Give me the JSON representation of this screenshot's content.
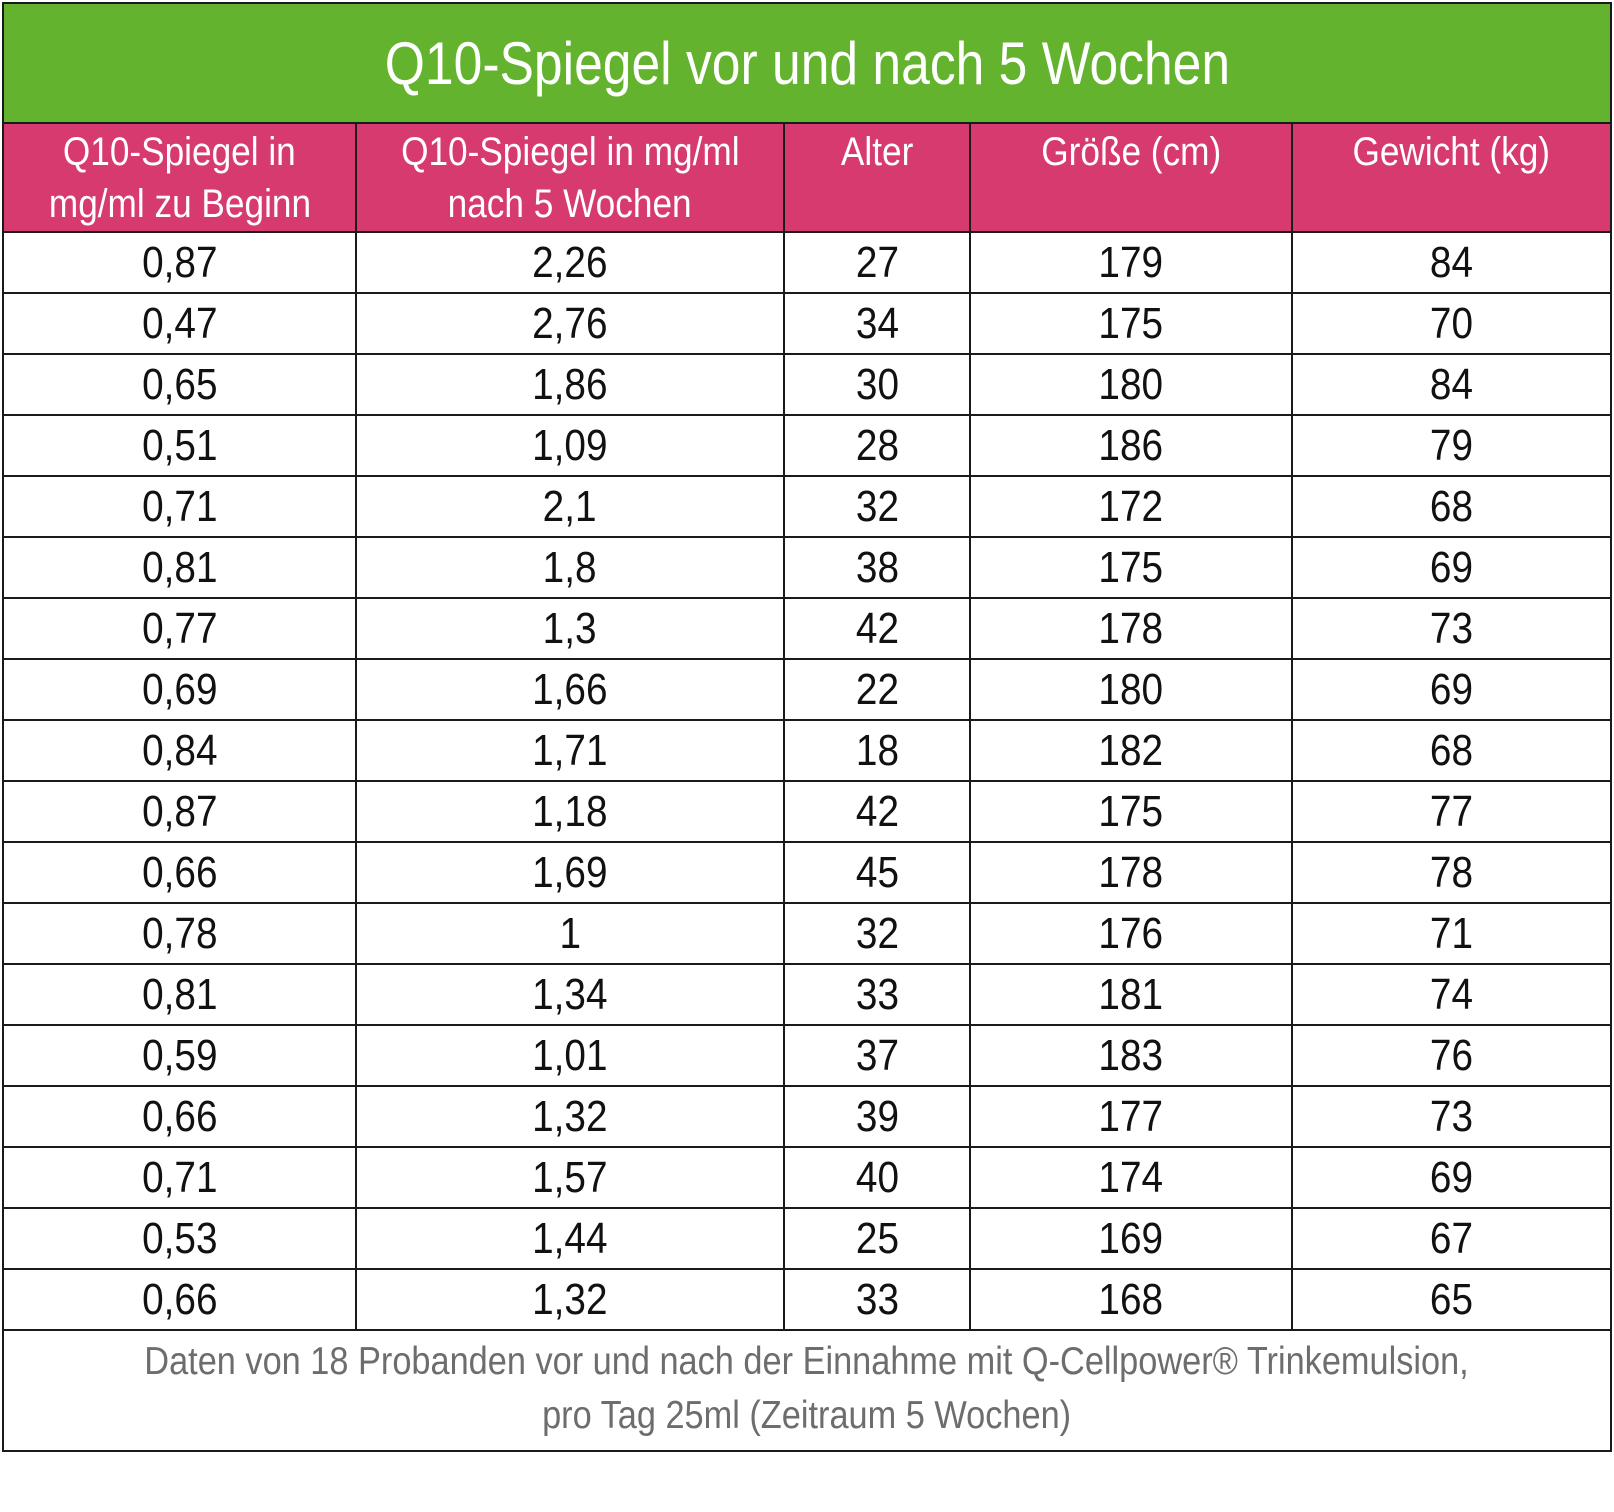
{
  "title": "Q10-Spiegel vor und nach 5 Wochen",
  "headers": [
    [
      "Q10-Spiegel in",
      "mg/ml zu Beginn"
    ],
    [
      "Q10-Spiegel in mg/ml",
      "nach 5 Wochen"
    ],
    [
      "Alter"
    ],
    [
      "Größe (cm)"
    ],
    [
      "Gewicht (kg)"
    ]
  ],
  "rows": [
    [
      "0,87",
      "2,26",
      "27",
      "179",
      "84"
    ],
    [
      "0,47",
      "2,76",
      "34",
      "175",
      "70"
    ],
    [
      "0,65",
      "1,86",
      "30",
      "180",
      "84"
    ],
    [
      "0,51",
      "1,09",
      "28",
      "186",
      "79"
    ],
    [
      "0,71",
      "2,1",
      "32",
      "172",
      "68"
    ],
    [
      "0,81",
      "1,8",
      "38",
      "175",
      "69"
    ],
    [
      "0,77",
      "1,3",
      "42",
      "178",
      "73"
    ],
    [
      "0,69",
      "1,66",
      "22",
      "180",
      "69"
    ],
    [
      "0,84",
      "1,71",
      "18",
      "182",
      "68"
    ],
    [
      "0,87",
      "1,18",
      "42",
      "175",
      "77"
    ],
    [
      "0,66",
      "1,69",
      "45",
      "178",
      "78"
    ],
    [
      "0,78",
      "1",
      "32",
      "176",
      "71"
    ],
    [
      "0,81",
      "1,34",
      "33",
      "181",
      "74"
    ],
    [
      "0,59",
      "1,01",
      "37",
      "183",
      "76"
    ],
    [
      "0,66",
      "1,32",
      "39",
      "177",
      "73"
    ],
    [
      "0,71",
      "1,57",
      "40",
      "174",
      "69"
    ],
    [
      "0,53",
      "1,44",
      "25",
      "169",
      "67"
    ],
    [
      "0,66",
      "1,32",
      "33",
      "168",
      "65"
    ]
  ],
  "footnote": [
    "Daten von 18 Probanden vor und nach der Einnahme mit Q-Cellpower® Trinkemulsion,",
    "pro Tag 25ml (Zeitraum 5 Wochen)"
  ],
  "colors": {
    "title_bg": "#63b32e",
    "header_bg": "#d63a6e",
    "footnote_text": "#6d6d6d"
  }
}
